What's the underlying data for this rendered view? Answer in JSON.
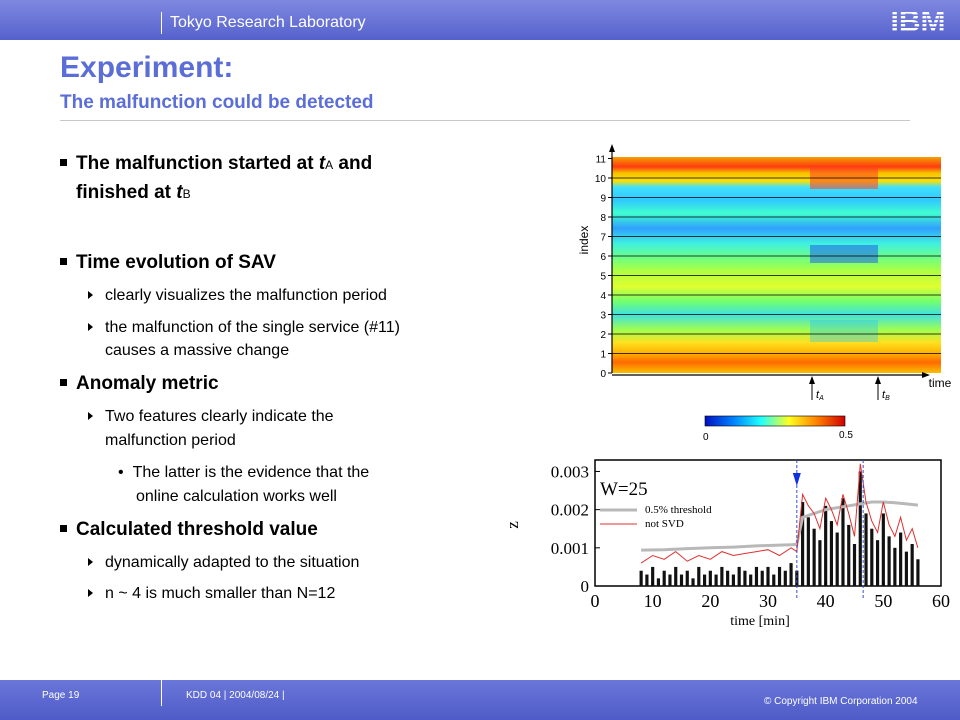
{
  "header": {
    "lab": "Tokyo Research Laboratory",
    "logo_text": "IBM"
  },
  "title": "Experiment:",
  "subtitle": "The malfunction could be detected",
  "bullets": {
    "b1_pre": "The malfunction started at ",
    "b1_tA_t": "t",
    "b1_tA_sub": "A",
    "b1_mid": " and",
    "b1_line2": "finished at ",
    "b1_tB_t": "t",
    "b1_tB_sub": "B",
    "b2": "Time evolution of SAV",
    "b2_1": "clearly visualizes the malfunction period",
    "b2_2a": "the malfunction of the single service (#11)",
    "b2_2b": "causes a massive change",
    "b3": "Anomaly metric",
    "b3_1a": "Two features clearly indicate the",
    "b3_1b": "malfunction period",
    "b3_1_1a": "The latter is the evidence that the",
    "b3_1_1b": "online calculation works well",
    "b4": "Calculated threshold value",
    "b4_1": "dynamically adapted to the situation",
    "b4_2": "n ~ 4  is much smaller than N=12"
  },
  "figure_top": {
    "ylabel": "index",
    "xlabel": "time",
    "yticks": [
      "0",
      "1",
      "2",
      "3",
      "4",
      "5",
      "6",
      "7",
      "8",
      "9",
      "10",
      "11"
    ],
    "marker_a_t": "t",
    "marker_a_sub": "A",
    "marker_b_t": "t",
    "marker_b_sub": "B",
    "colorbar_min": "0",
    "colorbar_max": "0.5"
  },
  "chart_data": {
    "type": "bar",
    "title": "",
    "annotation": "W=25",
    "xlabel": "time [min]",
    "ylabel": "z",
    "xlim": [
      0,
      60
    ],
    "ylim": [
      0,
      0.0033
    ],
    "xticks": [
      "0",
      "10",
      "20",
      "30",
      "40",
      "50",
      "60"
    ],
    "yticks": [
      "0",
      "0.001",
      "0.002",
      "0.003"
    ],
    "legend": "top-left",
    "markers": [
      35,
      46.5
    ],
    "series": [
      {
        "name": "0.5% threshold",
        "x": [
          8,
          12,
          16,
          20,
          24,
          28,
          30,
          32,
          34,
          35,
          36,
          38,
          40,
          42,
          44,
          46,
          48,
          50,
          52,
          54,
          56
        ],
        "y": [
          0.00094,
          0.00095,
          0.00098,
          0.001,
          0.00102,
          0.00105,
          0.00106,
          0.00107,
          0.00108,
          0.00109,
          0.0018,
          0.0019,
          0.002,
          0.00205,
          0.0021,
          0.00215,
          0.0022,
          0.0022,
          0.00218,
          0.00215,
          0.00212
        ]
      },
      {
        "name": "not SVD",
        "x": [
          8,
          10,
          12,
          14,
          16,
          18,
          20,
          22,
          24,
          26,
          28,
          30,
          32,
          34,
          35,
          36,
          37,
          38,
          39,
          40,
          41,
          42,
          43,
          44,
          45,
          46,
          47,
          48,
          49,
          50,
          51,
          52,
          53,
          54,
          55,
          56
        ],
        "y": [
          0.0006,
          0.0008,
          0.0007,
          0.0009,
          0.00065,
          0.0008,
          0.0007,
          0.0009,
          0.0008,
          0.00085,
          0.0009,
          0.00095,
          0.0008,
          0.001,
          0.0009,
          0.0024,
          0.0021,
          0.0019,
          0.0015,
          0.0023,
          0.002,
          0.0016,
          0.0024,
          0.0019,
          0.0013,
          0.0032,
          0.0022,
          0.0017,
          0.0014,
          0.0022,
          0.0016,
          0.0013,
          0.0018,
          0.0012,
          0.0015,
          0.001
        ]
      },
      {
        "name": "z",
        "x": [
          8,
          9,
          10,
          11,
          12,
          13,
          14,
          15,
          16,
          17,
          18,
          19,
          20,
          21,
          22,
          23,
          24,
          25,
          26,
          27,
          28,
          29,
          30,
          31,
          32,
          33,
          34,
          35,
          36,
          37,
          38,
          39,
          40,
          41,
          42,
          43,
          44,
          45,
          46,
          47,
          48,
          49,
          50,
          51,
          52,
          53,
          54,
          55,
          56
        ],
        "y": [
          0.0004,
          0.0003,
          0.0005,
          0.0002,
          0.0004,
          0.0003,
          0.0005,
          0.0003,
          0.0004,
          0.0002,
          0.0005,
          0.0003,
          0.0004,
          0.0003,
          0.0005,
          0.0004,
          0.0003,
          0.0005,
          0.0004,
          0.0003,
          0.0005,
          0.0004,
          0.0005,
          0.0003,
          0.0005,
          0.0004,
          0.0006,
          0.0004,
          0.0022,
          0.0018,
          0.0015,
          0.0012,
          0.0021,
          0.0017,
          0.0014,
          0.0023,
          0.0016,
          0.0011,
          0.003,
          0.0019,
          0.0015,
          0.0012,
          0.0019,
          0.0013,
          0.001,
          0.0014,
          0.0009,
          0.0011,
          0.0007
        ]
      }
    ]
  },
  "footer": {
    "page": "Page 19",
    "kdd": "KDD 04 | 2004/08/24 |",
    "copyright": "© Copyright IBM Corporation 2004"
  },
  "colors": {
    "accent": "#5b6ed8",
    "bar": "#5562cc",
    "threshold": "#b8b8b8",
    "notsvd": "#e03030"
  }
}
